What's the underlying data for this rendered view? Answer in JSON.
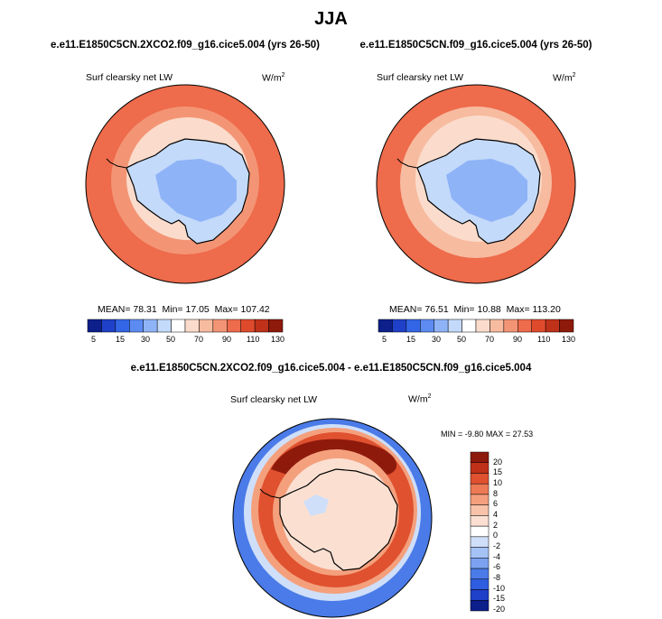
{
  "page_title": "JJA",
  "colors": {
    "seq": [
      "#0c1f8a",
      "#1f40c8",
      "#3366e6",
      "#5c8cf2",
      "#8fb3f7",
      "#c4dafa",
      "#ffffff",
      "#fbdccc",
      "#f7bba0",
      "#f39575",
      "#ee6b4b",
      "#e04a2c",
      "#c0311a",
      "#8e1a0c"
    ],
    "div": [
      "#0c1f8a",
      "#1f40c8",
      "#2f5de0",
      "#4a7be8",
      "#7aa2f0",
      "#a5c2f5",
      "#cfdff9",
      "#ffffff",
      "#fbe0d2",
      "#f8c3a9",
      "#f4a07d",
      "#ee7a55",
      "#e0512f",
      "#c0311a",
      "#8e1a0c"
    ]
  },
  "chart_data": [
    {
      "type": "heatmap",
      "title": "e.e11.E1850C5CN.2XCO2.f09_g16.cice5.004 (yrs 26-50)",
      "variable": "Surf clearsky net LW",
      "units": {
        "base": "W/m",
        "exp": "2"
      },
      "stats": {
        "mean_label": "MEAN=",
        "mean": "78.31",
        "min_label": "Min=",
        "min": "17.05",
        "max_label": "Max=",
        "max": "107.42"
      },
      "colorbar_ticks": [
        "5",
        "15",
        "30",
        "50",
        "70",
        "90",
        "110",
        "130"
      ]
    },
    {
      "type": "heatmap",
      "title": "e.e11.E1850C5CN.f09_g16.cice5.004 (yrs 26-50)",
      "variable": "Surf clearsky net LW",
      "units": {
        "base": "W/m",
        "exp": "2"
      },
      "stats": {
        "mean_label": "MEAN=",
        "mean": "76.51",
        "min_label": "Min=",
        "min": "10.88",
        "max_label": "Max=",
        "max": "113.20"
      },
      "colorbar_ticks": [
        "5",
        "15",
        "30",
        "50",
        "70",
        "90",
        "110",
        "130"
      ]
    },
    {
      "type": "heatmap",
      "title": "e.e11.E1850C5CN.2XCO2.f09_g16.cice5.004 - e.e11.E1850C5CN.f09_g16.cice5.004",
      "variable": "Surf clearsky net LW",
      "units": {
        "base": "W/m",
        "exp": "2"
      },
      "stats": {
        "min_label": "MIN =",
        "min": "-9.80",
        "max_label": "MAX =",
        "max": "27.53"
      },
      "colorbar_ticks": [
        "20",
        "15",
        "10",
        "8",
        "6",
        "4",
        "2",
        "0",
        "-2",
        "-4",
        "-6",
        "-8",
        "-10",
        "-15",
        "-20"
      ]
    }
  ]
}
